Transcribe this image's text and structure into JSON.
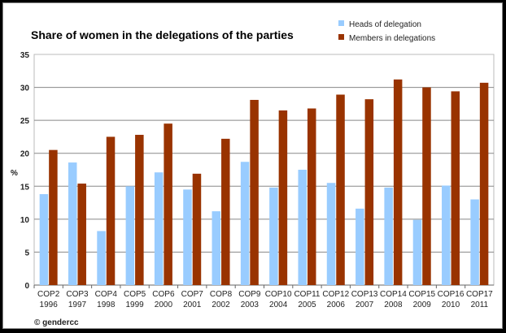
{
  "chart_data": {
    "type": "bar",
    "title": "Share of women in the delegations of the parties",
    "xlabel": "",
    "ylabel": "%",
    "ylim": [
      0,
      35
    ],
    "yticks": [
      0,
      5,
      10,
      15,
      20,
      25,
      30,
      35
    ],
    "grid": true,
    "legend_position": "top-right",
    "categories": [
      "COP2|1996",
      "COP3|1997",
      "COP4|1998",
      "COP5|1999",
      "COP6|2000",
      "COP7|2001",
      "COP8|2002",
      "COP9|2003",
      "COP10|2004",
      "COP11|2005",
      "COP12|2006",
      "COP13|2007",
      "COP14|2008",
      "COP15|2009",
      "COP16|2010",
      "COP17|2011"
    ],
    "series": [
      {
        "name": "Heads of delegation",
        "color": "#99ccff",
        "values": [
          13.8,
          18.6,
          8.2,
          15.0,
          17.1,
          14.5,
          11.2,
          18.7,
          14.8,
          17.5,
          15.5,
          11.6,
          14.8,
          9.9,
          15.1,
          13.0
        ]
      },
      {
        "name": "Members in delegations",
        "color": "#993300",
        "values": [
          20.5,
          15.4,
          22.5,
          22.8,
          24.5,
          16.9,
          22.2,
          28.1,
          26.5,
          26.8,
          28.9,
          28.2,
          31.2,
          30.0,
          29.4,
          30.7
        ]
      }
    ],
    "source": "© gendercc"
  }
}
